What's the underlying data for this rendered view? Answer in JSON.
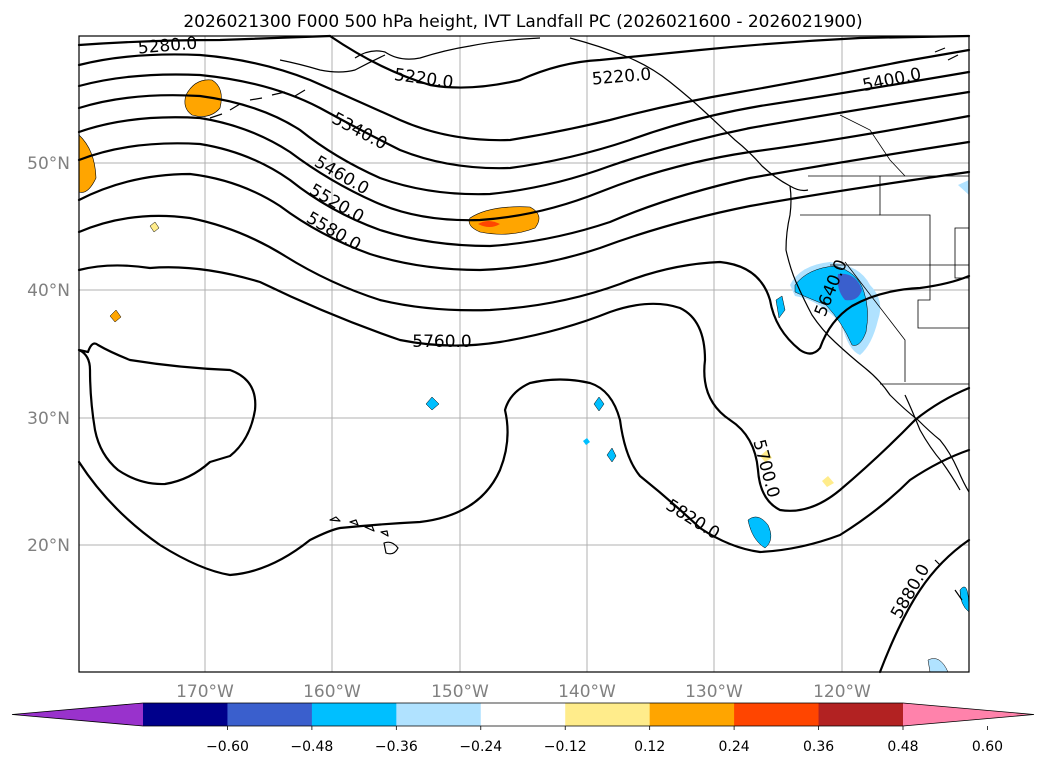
{
  "title": "2026021300 F000 500 hPa height, IVT Landfall PC (2026021600 - 2026021900)",
  "lat_labels": [
    "50°N",
    "40°N",
    "30°N",
    "20°N"
  ],
  "lon_labels": [
    "170°W",
    "160°W",
    "150°W",
    "140°W",
    "130°W",
    "120°W"
  ],
  "contour_labels": [
    "5280.0",
    "5220.0",
    "5220.0",
    "5400.0",
    "5340.0",
    "5460.0",
    "5520.0",
    "5580.0",
    "5760.0",
    "5640.0",
    "5700.0",
    "5820.0",
    "5880.0"
  ],
  "colorbar": {
    "ticks": [
      "−0.60",
      "−0.48",
      "−0.36",
      "−0.24",
      "−0.12",
      "0.12",
      "0.24",
      "0.36",
      "0.48",
      "0.60"
    ],
    "colors": [
      "#9932cc",
      "#00008b",
      "#3a5fcd",
      "#00bfff",
      "#b0e2ff",
      "#ffffff",
      "#ffec8b",
      "#ffa500",
      "#ff4500",
      "#b22222",
      "#ff82ab"
    ]
  },
  "shading_colors": {
    "positive_light": "#ffec8b",
    "positive_mid": "#ffa500",
    "positive_high": "#ff4500",
    "negative_light": "#b0e2ff",
    "negative_mid": "#00bfff",
    "negative_high": "#3a5fcd"
  }
}
